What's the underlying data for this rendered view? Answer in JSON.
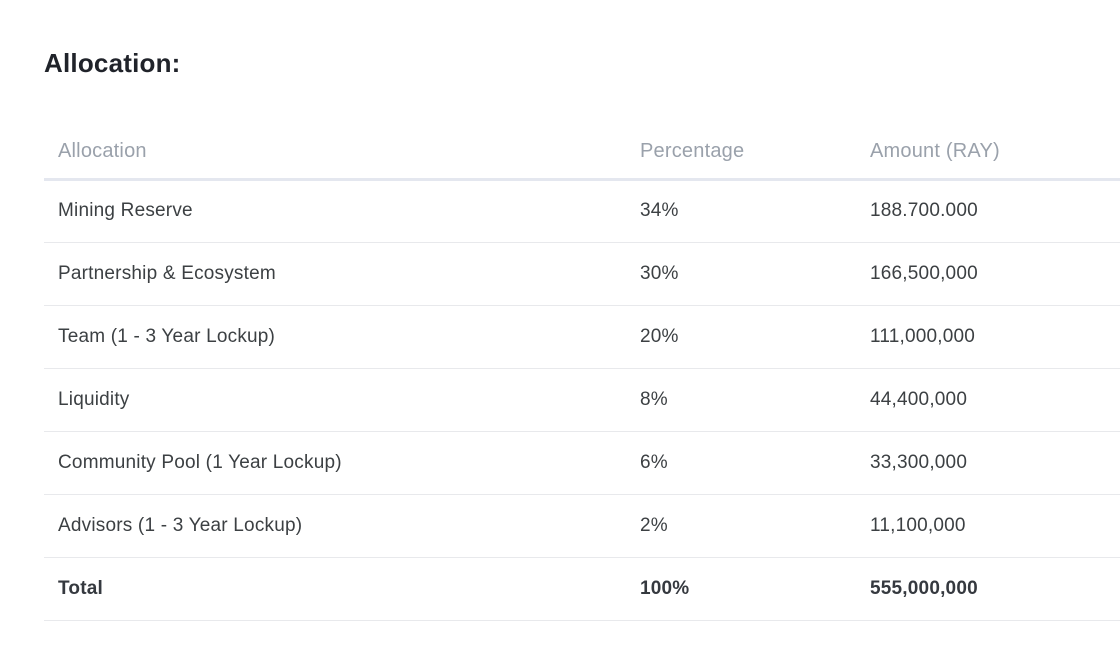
{
  "page": {
    "heading": "Allocation:"
  },
  "table": {
    "columns": [
      "Allocation",
      "Percentage",
      "Amount (RAY)"
    ],
    "rows": [
      [
        "Mining Reserve",
        "34%",
        "188.700.000"
      ],
      [
        "Partnership & Ecosystem",
        "30%",
        "166,500,000"
      ],
      [
        "Team (1 - 3 Year Lockup)",
        "20%",
        "111,000,000"
      ],
      [
        "Liquidity",
        "8%",
        "44,400,000"
      ],
      [
        "Community Pool (1 Year Lockup)",
        "6%",
        "33,300,000"
      ],
      [
        "Advisors (1 - 3 Year Lockup)",
        "2%",
        "11,100,000"
      ]
    ],
    "total_row": [
      "Total",
      "100%",
      "555,000,000"
    ]
  },
  "colors": {
    "background": "#ffffff",
    "heading_text": "#20232a",
    "header_text": "#9aa1ab",
    "body_text": "#3c4043",
    "header_divider": "#e4e7ef",
    "row_divider": "#e8e9ec"
  }
}
